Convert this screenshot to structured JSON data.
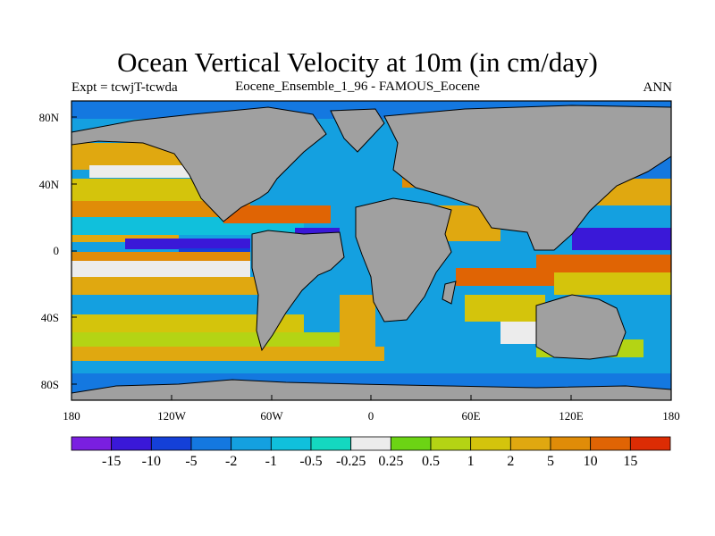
{
  "title": "Ocean Vertical Velocity at 10m (in cm/day)",
  "subtitle_left": "Expt = tcwjT-tcwda",
  "subtitle_center": "Eocene_Ensemble_1_96 - FAMOUS_Eocene",
  "subtitle_right": "ANN",
  "lat_labels": [
    "80N",
    "40N",
    "0",
    "40S",
    "80S"
  ],
  "lon_labels": [
    "180",
    "120W",
    "60W",
    "0",
    "60E",
    "120E",
    "180"
  ],
  "colorbar": {
    "colors": [
      "#7a1fe0",
      "#3a18d8",
      "#1440d8",
      "#1478e0",
      "#14a0e0",
      "#10c0dc",
      "#14d8c0",
      "#ececec",
      "#6cd414",
      "#b4d414",
      "#d4c40c",
      "#e0a810",
      "#e08c08",
      "#e06404",
      "#dc2c04"
    ],
    "labels": [
      "-15",
      "-10",
      "-5",
      "-2",
      "-1",
      "-0.5",
      "-0.25",
      "0.25",
      "0.5",
      "1",
      "2",
      "5",
      "10",
      "15"
    ]
  },
  "map": {
    "land_color": "#a0a0a0",
    "coastline_color": "#000000"
  }
}
